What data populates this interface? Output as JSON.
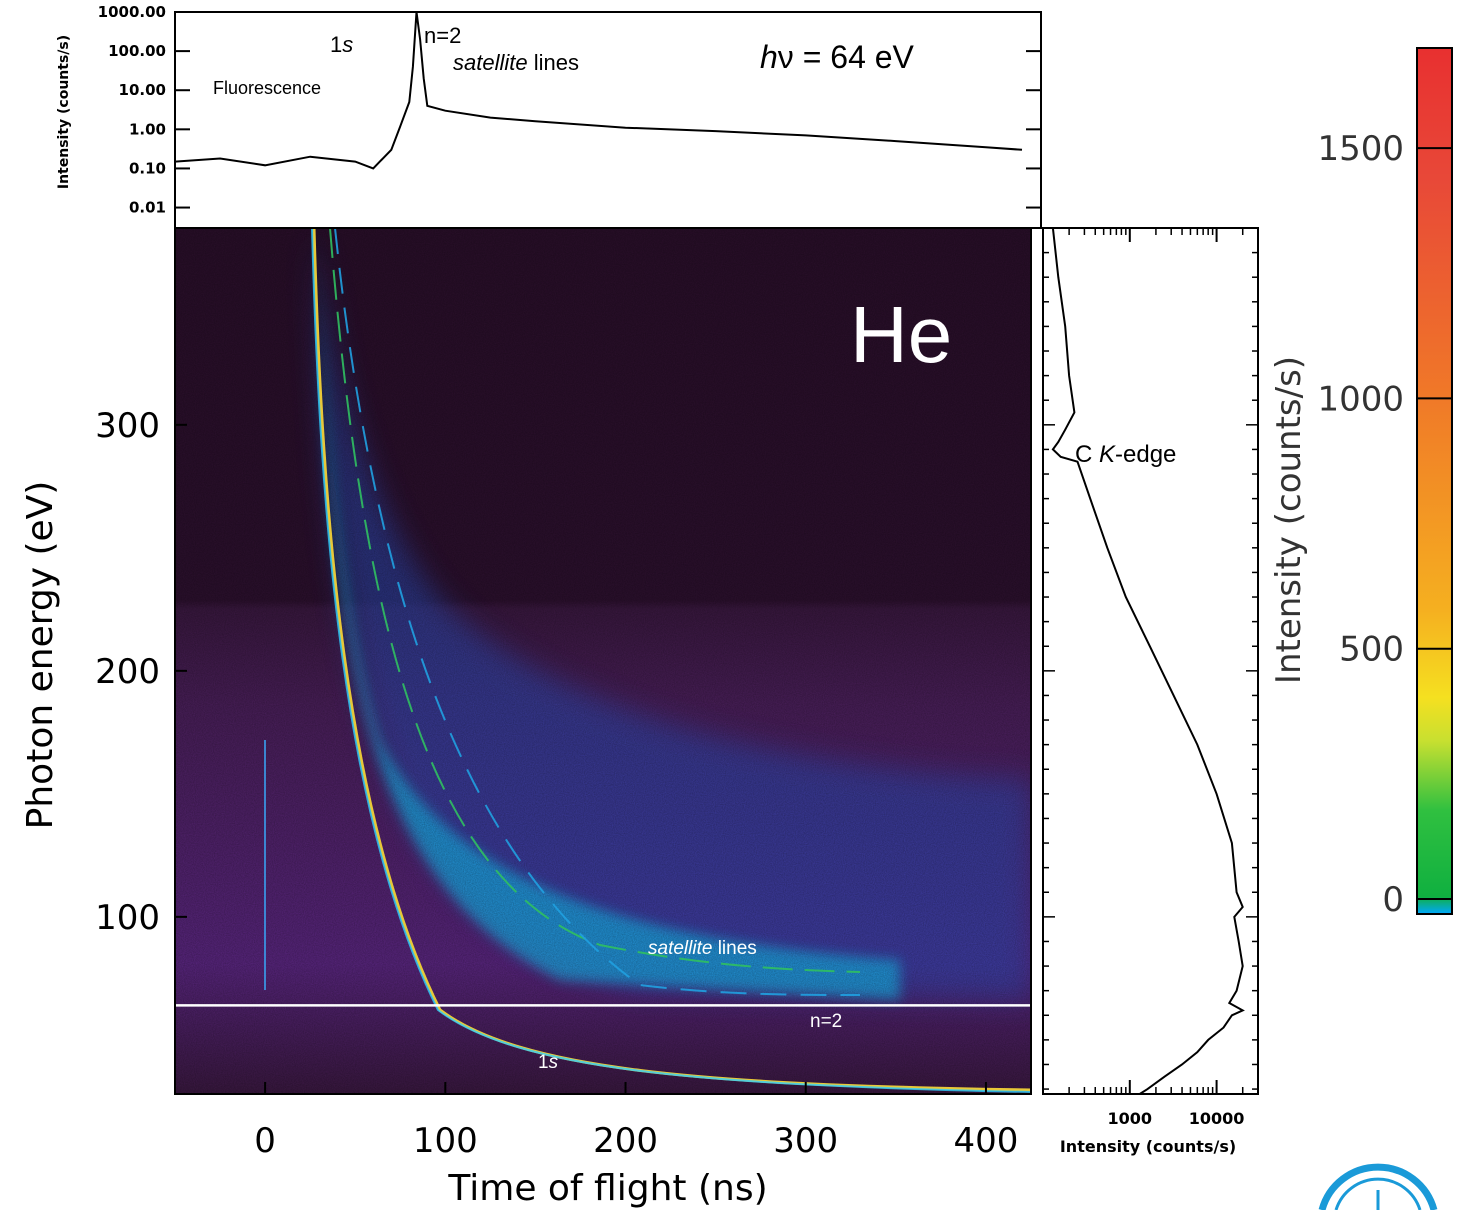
{
  "chart_data": [
    {
      "panel": "top-spectrum",
      "type": "line",
      "ylabel": "Intensity (counts/s)",
      "yscale": "log",
      "ylim": [
        0.003,
        1000
      ],
      "xlim": [
        -50,
        425
      ],
      "y_ticks": [
        "1000.00",
        "100.00",
        "10.00",
        "1.00",
        "0.10",
        "0.01"
      ],
      "annotations": {
        "fluorescence": "Fluorescence",
        "one_s_num": "1",
        "one_s_s": "s",
        "n2": "n=2",
        "sat_italic": "satellite",
        "sat_rest": " lines",
        "hv_h": "h",
        "hv_rest": "ν = 64 eV"
      },
      "series": [
        {
          "x": [
            -50,
            -25,
            0,
            25,
            50,
            60,
            70,
            75,
            80,
            82,
            84,
            86,
            88,
            90,
            100,
            125,
            150,
            200,
            250,
            300,
            350,
            400,
            420
          ],
          "y": [
            0.15,
            0.18,
            0.12,
            0.2,
            0.15,
            0.1,
            0.3,
            1.2,
            5,
            40,
            1000,
            200,
            20,
            4,
            3,
            2,
            1.6,
            1.1,
            0.9,
            0.7,
            0.5,
            0.35,
            0.3
          ]
        }
      ]
    },
    {
      "panel": "main-map",
      "type": "heatmap",
      "xlabel": "Time of flight (ns)",
      "ylabel": "Photon energy (eV)",
      "xlim": [
        -50,
        425
      ],
      "ylim": [
        28,
        380
      ],
      "x_ticks": [
        "0",
        "100",
        "200",
        "300",
        "400"
      ],
      "y_ticks": [
        "100",
        "200",
        "300"
      ],
      "annotations": {
        "element": "He",
        "sat_italic": "satellite",
        "sat_rest": " lines",
        "n2": "n=2",
        "one_s_num": "1",
        "one_s_s": "s"
      },
      "marked_energy": 64
    },
    {
      "panel": "right-spectrum",
      "type": "line",
      "xlabel": "Intensity (counts/s)",
      "xscale": "log",
      "xlim": [
        100,
        30000
      ],
      "x_ticks": [
        "1000",
        "10000"
      ],
      "annotation_c": "C ",
      "annotation_k": "K",
      "annotation_edge": "-edge",
      "series": [
        {
          "y": [
            380,
            360,
            340,
            320,
            305,
            298,
            293,
            290,
            287,
            285,
            270,
            250,
            230,
            210,
            190,
            170,
            150,
            130,
            110,
            104,
            100,
            90,
            80,
            70,
            65,
            62,
            60,
            55,
            50,
            45,
            40,
            35,
            30,
            28
          ],
          "x": [
            130,
            150,
            180,
            200,
            230,
            180,
            150,
            130,
            160,
            250,
            350,
            550,
            900,
            1700,
            3200,
            6000,
            10000,
            15000,
            17000,
            20000,
            16000,
            18000,
            20000,
            17000,
            14000,
            20000,
            15000,
            12000,
            8000,
            6000,
            4000,
            2500,
            1600,
            1300
          ]
        }
      ]
    },
    {
      "panel": "colorbar",
      "type": "colorbar",
      "label": "Intensity (counts/s)",
      "range": [
        -30,
        1700
      ],
      "ticks": [
        "0",
        "500",
        "1000",
        "1500"
      ],
      "tick_values": [
        0,
        500,
        1000,
        1500
      ]
    }
  ]
}
